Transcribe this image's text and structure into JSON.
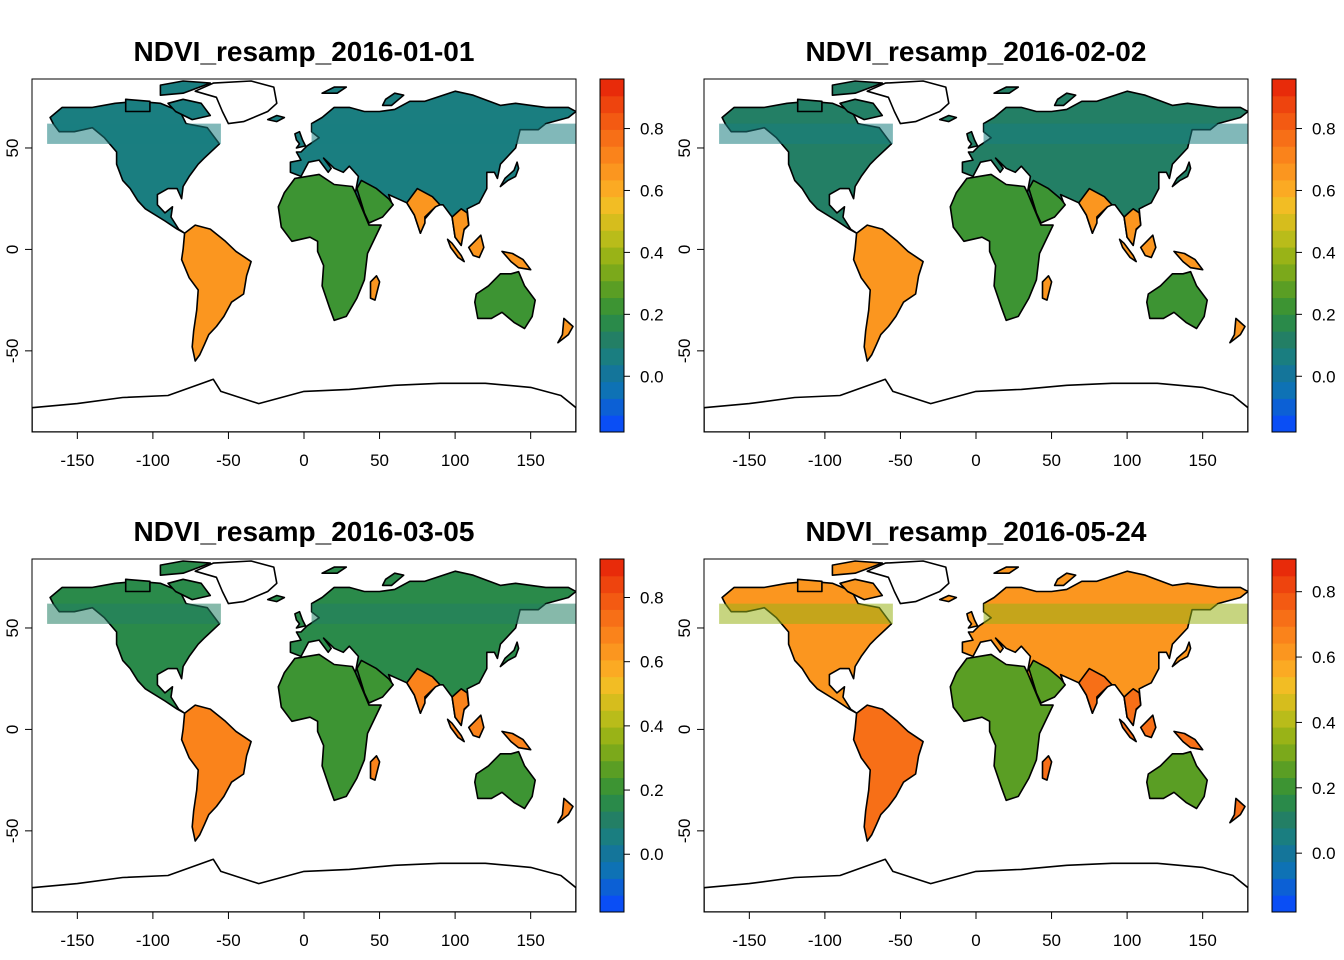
{
  "colors": {
    "ramp": [
      "#0a4ef5",
      "#0c60d5",
      "#0e72b5",
      "#14759a",
      "#1a7e80",
      "#237f65",
      "#2a8a4a",
      "#3d9433",
      "#5a9e24",
      "#7ba91b",
      "#99b317",
      "#b9bc1a",
      "#d6bd1d",
      "#f2bd24",
      "#fbaa23",
      "#fb961f",
      "#fa831b",
      "#f76f17",
      "#f35a12",
      "#ee440e",
      "#e82b0a"
    ],
    "border": "#000000"
  },
  "panels": [
    {
      "title": "NDVI_resamp_2016-01-01",
      "colorbar": {
        "min": -0.18,
        "max": 0.96,
        "ticks": [
          "0.0",
          "0.2",
          "0.4",
          "0.6",
          "0.8"
        ]
      },
      "chart_data": {
        "type": "heatmap",
        "variable": "NDVI",
        "date": "2016-01-01",
        "xlim": [
          -180,
          180
        ],
        "ylim": [
          -90,
          84
        ],
        "xticks": [
          -150,
          -100,
          -50,
          0,
          50,
          100,
          150
        ],
        "yticks": [
          -50,
          0,
          50
        ],
        "zrange": [
          -0.18,
          0.96
        ],
        "northern_hemisphere": "low (0.0–0.3)",
        "tropics": "high (0.6–0.8)"
      }
    },
    {
      "title": "NDVI_resamp_2016-02-02",
      "colorbar": {
        "min": -0.18,
        "max": 0.96,
        "ticks": [
          "0.0",
          "0.2",
          "0.4",
          "0.6",
          "0.8"
        ]
      },
      "chart_data": {
        "type": "heatmap",
        "variable": "NDVI",
        "date": "2016-02-02",
        "xlim": [
          -180,
          180
        ],
        "ylim": [
          -90,
          84
        ],
        "xticks": [
          -150,
          -100,
          -50,
          0,
          50,
          100,
          150
        ],
        "yticks": [
          -50,
          0,
          50
        ],
        "zrange": [
          -0.18,
          0.96
        ],
        "northern_hemisphere": "low (0.0–0.3)",
        "tropics": "high (0.6–0.8)"
      }
    },
    {
      "title": "NDVI_resamp_2016-03-05",
      "colorbar": {
        "min": -0.18,
        "max": 0.92,
        "ticks": [
          "0.0",
          "0.2",
          "0.4",
          "0.6",
          "0.8"
        ]
      },
      "chart_data": {
        "type": "heatmap",
        "variable": "NDVI",
        "date": "2016-03-05",
        "xlim": [
          -180,
          180
        ],
        "ylim": [
          -90,
          84
        ],
        "xticks": [
          -150,
          -100,
          -50,
          0,
          50,
          100,
          150
        ],
        "yticks": [
          -50,
          0,
          50
        ],
        "zrange": [
          -0.18,
          0.92
        ],
        "northern_hemisphere": "low-moderate (0.1–0.3)",
        "tropics": "high (0.6–0.8)"
      }
    },
    {
      "title": "NDVI_resamp_2016-05-24",
      "colorbar": {
        "min": -0.18,
        "max": 0.9,
        "ticks": [
          "0.0",
          "0.2",
          "0.4",
          "0.6",
          "0.8"
        ]
      },
      "chart_data": {
        "type": "heatmap",
        "variable": "NDVI",
        "date": "2016-05-24",
        "xlim": [
          -180,
          180
        ],
        "ylim": [
          -90,
          84
        ],
        "xticks": [
          -150,
          -100,
          -50,
          0,
          50,
          100,
          150
        ],
        "yticks": [
          -50,
          0,
          50
        ],
        "zrange": [
          -0.18,
          0.9
        ],
        "northern_hemisphere": "high (0.5–0.8)",
        "tropics": "high (0.6–0.8)"
      }
    }
  ],
  "chart_data": [
    {
      "type": "heatmap",
      "title": "NDVI_resamp_2016-01-01",
      "xlim": [
        -180,
        180
      ],
      "ylim": [
        -90,
        84
      ],
      "zrange": [
        -0.18,
        0.96
      ],
      "colorbar_ticks": [
        0.0,
        0.2,
        0.4,
        0.6,
        0.8
      ]
    },
    {
      "type": "heatmap",
      "title": "NDVI_resamp_2016-02-02",
      "xlim": [
        -180,
        180
      ],
      "ylim": [
        -90,
        84
      ],
      "zrange": [
        -0.18,
        0.96
      ],
      "colorbar_ticks": [
        0.0,
        0.2,
        0.4,
        0.6,
        0.8
      ]
    },
    {
      "type": "heatmap",
      "title": "NDVI_resamp_2016-03-05",
      "xlim": [
        -180,
        180
      ],
      "ylim": [
        -90,
        84
      ],
      "zrange": [
        -0.18,
        0.92
      ],
      "colorbar_ticks": [
        0.0,
        0.2,
        0.4,
        0.6,
        0.8
      ]
    },
    {
      "type": "heatmap",
      "title": "NDVI_resamp_2016-05-24",
      "xlim": [
        -180,
        180
      ],
      "ylim": [
        -90,
        84
      ],
      "zrange": [
        -0.18,
        0.9
      ],
      "colorbar_ticks": [
        0.0,
        0.2,
        0.4,
        0.6,
        0.8
      ]
    }
  ]
}
